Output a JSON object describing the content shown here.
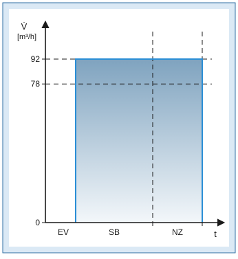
{
  "chart_data": {
    "type": "area",
    "ylabel": "V̇",
    "ylabel_unit": "[m³/h]",
    "xlabel": "t",
    "y_ticks": [
      {
        "value": 0,
        "label": "0"
      },
      {
        "value": 78,
        "label": "78"
      },
      {
        "value": 92,
        "label": "92"
      }
    ],
    "phases": [
      {
        "name": "EV",
        "value": 0
      },
      {
        "name": "SB",
        "value": 92
      },
      {
        "name": "NZ",
        "value": 92
      }
    ],
    "reference_lines": [
      92,
      78
    ],
    "colors": {
      "frame_fill": "#dbe9f5",
      "frame_border": "#2f6ea3",
      "plot_bg": "#ffffff",
      "fill_top": "#7fa3bf",
      "fill_bottom": "#f3f7fa",
      "outline": "#2a8ed6",
      "axis": "#1a1a1a"
    }
  }
}
